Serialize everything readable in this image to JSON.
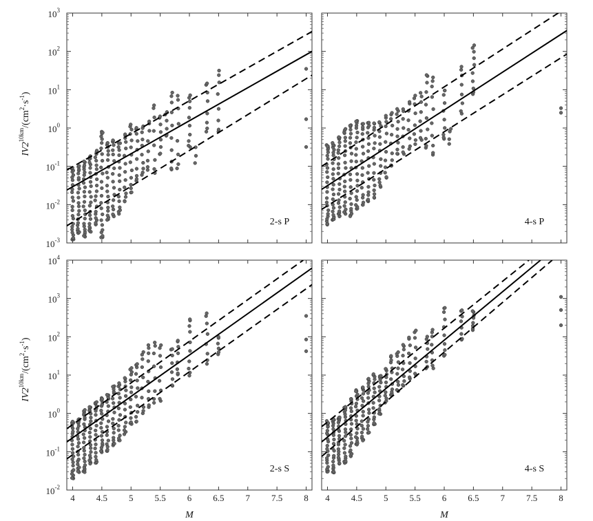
{
  "figure": {
    "ylabel_lead": "IV2",
    "ylabel_sup": "10km",
    "ylabel_units_open": "/(cm",
    "ylabel_units_sup1": "2",
    "ylabel_units_mid": "·s",
    "ylabel_units_sup2": "-1",
    "ylabel_units_close": ")",
    "xlabel": "M"
  },
  "chart_data": [
    {
      "panel": "top-left",
      "type": "scatter",
      "label": "2-s P",
      "xlabel": "",
      "ylabel": "IV2^10km/(cm^2·s^-1)",
      "x_ticks": [
        "4",
        "4.5",
        "5",
        "5.5",
        "6",
        "6.5",
        "7",
        "7.5",
        "8"
      ],
      "xlim": [
        3.9,
        8.1
      ],
      "ylim_log10": [
        -3,
        3
      ],
      "y_scale": "log",
      "y_tick_exponents": [
        "-3",
        "-2",
        "-1",
        "0",
        "1",
        "2",
        "3"
      ],
      "regression": {
        "mean": [
          {
            "x": 3.9,
            "y": 0.024
          },
          {
            "x": 8.1,
            "y": 100
          }
        ],
        "upper": [
          {
            "x": 3.9,
            "y": 0.08
          },
          {
            "x": 8.1,
            "y": 330
          }
        ],
        "lower": [
          {
            "x": 3.9,
            "y": 0.0028
          },
          {
            "x": 8.1,
            "y": 24
          }
        ]
      },
      "outliers": [
        {
          "x": 8.0,
          "y": 35
        },
        {
          "x": 8.0,
          "y": 1.7
        },
        {
          "x": 8.0,
          "y": 0.32
        }
      ],
      "clusters": [
        {
          "x": 4.0,
          "ymin": 0.0012,
          "ymax": 0.09,
          "n": 26
        },
        {
          "x": 4.1,
          "ymin": 0.0018,
          "ymax": 0.1,
          "n": 24
        },
        {
          "x": 4.2,
          "ymin": 0.0015,
          "ymax": 0.13,
          "n": 26
        },
        {
          "x": 4.3,
          "ymin": 0.002,
          "ymax": 0.18,
          "n": 24
        },
        {
          "x": 4.4,
          "ymin": 0.003,
          "ymax": 0.25,
          "n": 22
        },
        {
          "x": 4.5,
          "ymin": 0.0014,
          "ymax": 0.8,
          "n": 24
        },
        {
          "x": 4.6,
          "ymin": 0.004,
          "ymax": 0.4,
          "n": 20
        },
        {
          "x": 4.7,
          "ymin": 0.005,
          "ymax": 0.5,
          "n": 18
        },
        {
          "x": 4.8,
          "ymin": 0.006,
          "ymax": 0.4,
          "n": 16
        },
        {
          "x": 4.9,
          "ymin": 0.012,
          "ymax": 0.7,
          "n": 14
        },
        {
          "x": 5.0,
          "ymin": 0.02,
          "ymax": 1.2,
          "n": 14
        },
        {
          "x": 5.1,
          "ymin": 0.04,
          "ymax": 1.0,
          "n": 10
        },
        {
          "x": 5.2,
          "ymin": 0.06,
          "ymax": 1.1,
          "n": 10
        },
        {
          "x": 5.3,
          "ymin": 0.08,
          "ymax": 1.5,
          "n": 8
        },
        {
          "x": 5.4,
          "ymin": 0.07,
          "ymax": 4.0,
          "n": 8
        },
        {
          "x": 5.5,
          "ymin": 0.2,
          "ymax": 2.0,
          "n": 8
        },
        {
          "x": 5.6,
          "ymin": 0.6,
          "ymax": 2.5,
          "n": 6
        },
        {
          "x": 5.7,
          "ymin": 0.08,
          "ymax": 8.0,
          "n": 10
        },
        {
          "x": 5.8,
          "ymin": 0.09,
          "ymax": 7.0,
          "n": 8
        },
        {
          "x": 6.0,
          "ymin": 0.3,
          "ymax": 7.0,
          "n": 10
        },
        {
          "x": 6.1,
          "ymin": 0.12,
          "ymax": 0.3,
          "n": 3
        },
        {
          "x": 6.3,
          "ymin": 0.8,
          "ymax": 15,
          "n": 8
        },
        {
          "x": 6.5,
          "ymin": 0.8,
          "ymax": 30,
          "n": 8
        }
      ]
    },
    {
      "panel": "top-right",
      "type": "scatter",
      "label": "4-s P",
      "xlabel": "",
      "ylabel": "",
      "x_ticks": [
        "4",
        "4.5",
        "5",
        "5.5",
        "6",
        "6.5",
        "7",
        "7.5",
        "8"
      ],
      "xlim": [
        3.9,
        8.1
      ],
      "ylim_log10": [
        -3,
        3
      ],
      "y_scale": "log",
      "regression": {
        "mean": [
          {
            "x": 3.9,
            "y": 0.025
          },
          {
            "x": 8.1,
            "y": 350
          }
        ],
        "upper": [
          {
            "x": 3.9,
            "y": 0.1
          },
          {
            "x": 8.1,
            "y": 1400
          }
        ],
        "lower": [
          {
            "x": 3.9,
            "y": 0.0075
          },
          {
            "x": 8.1,
            "y": 85
          }
        ]
      },
      "outliers": [
        {
          "x": 8.0,
          "y": 3.3
        },
        {
          "x": 8.0,
          "y": 2.5
        }
      ],
      "clusters": [
        {
          "x": 4.0,
          "ymin": 0.003,
          "ymax": 0.35,
          "n": 26
        },
        {
          "x": 4.1,
          "ymin": 0.004,
          "ymax": 0.4,
          "n": 24
        },
        {
          "x": 4.2,
          "ymin": 0.005,
          "ymax": 0.6,
          "n": 24
        },
        {
          "x": 4.3,
          "ymin": 0.006,
          "ymax": 0.9,
          "n": 22
        },
        {
          "x": 4.4,
          "ymin": 0.005,
          "ymax": 1.2,
          "n": 22
        },
        {
          "x": 4.5,
          "ymin": 0.008,
          "ymax": 1.5,
          "n": 22
        },
        {
          "x": 4.6,
          "ymin": 0.01,
          "ymax": 1.3,
          "n": 18
        },
        {
          "x": 4.7,
          "ymin": 0.012,
          "ymax": 1.4,
          "n": 18
        },
        {
          "x": 4.8,
          "ymin": 0.015,
          "ymax": 1.3,
          "n": 16
        },
        {
          "x": 4.9,
          "ymin": 0.03,
          "ymax": 1.4,
          "n": 14
        },
        {
          "x": 5.0,
          "ymin": 0.05,
          "ymax": 2.0,
          "n": 12
        },
        {
          "x": 5.1,
          "ymin": 0.1,
          "ymax": 2.5,
          "n": 10
        },
        {
          "x": 5.2,
          "ymin": 0.2,
          "ymax": 3.0,
          "n": 10
        },
        {
          "x": 5.3,
          "ymin": 0.2,
          "ymax": 3.0,
          "n": 8
        },
        {
          "x": 5.4,
          "ymin": 0.3,
          "ymax": 5.0,
          "n": 8
        },
        {
          "x": 5.5,
          "ymin": 0.4,
          "ymax": 7.0,
          "n": 8
        },
        {
          "x": 5.6,
          "ymin": 0.5,
          "ymax": 8.0,
          "n": 8
        },
        {
          "x": 5.7,
          "ymin": 0.3,
          "ymax": 25,
          "n": 10
        },
        {
          "x": 5.8,
          "ymin": 0.2,
          "ymax": 20,
          "n": 10
        },
        {
          "x": 6.0,
          "ymin": 0.5,
          "ymax": 10,
          "n": 10
        },
        {
          "x": 6.1,
          "ymin": 0.4,
          "ymax": 1.0,
          "n": 4
        },
        {
          "x": 6.3,
          "ymin": 2.5,
          "ymax": 40,
          "n": 8
        },
        {
          "x": 6.5,
          "ymin": 8,
          "ymax": 140,
          "n": 10
        }
      ]
    },
    {
      "panel": "bottom-left",
      "type": "scatter",
      "label": "2-s S",
      "xlabel": "M",
      "ylabel": "IV2^10km/(cm^2·s^-1)",
      "x_ticks": [
        "4",
        "4.5",
        "5",
        "5.5",
        "6",
        "6.5",
        "7",
        "7.5",
        "8"
      ],
      "xlim": [
        3.9,
        8.1
      ],
      "ylim_log10": [
        -2,
        4
      ],
      "y_scale": "log",
      "y_tick_exponents": [
        "-2",
        "-1",
        "0",
        "1",
        "2",
        "3",
        "4"
      ],
      "regression": {
        "mean": [
          {
            "x": 3.9,
            "y": 0.18
          },
          {
            "x": 8.1,
            "y": 6200
          }
        ],
        "upper": [
          {
            "x": 3.9,
            "y": 0.4
          },
          {
            "x": 7.95,
            "y": 10000
          }
        ],
        "lower": [
          {
            "x": 3.9,
            "y": 0.065
          },
          {
            "x": 8.1,
            "y": 2300
          }
        ]
      },
      "outliers": [
        {
          "x": 8.0,
          "y": 350
        },
        {
          "x": 8.0,
          "y": 85
        },
        {
          "x": 8.0,
          "y": 42
        }
      ],
      "clusters": [
        {
          "x": 4.0,
          "ymin": 0.02,
          "ymax": 0.6,
          "n": 24
        },
        {
          "x": 4.1,
          "ymin": 0.03,
          "ymax": 0.7,
          "n": 22
        },
        {
          "x": 4.2,
          "ymin": 0.03,
          "ymax": 1.2,
          "n": 24
        },
        {
          "x": 4.3,
          "ymin": 0.05,
          "ymax": 1.5,
          "n": 22
        },
        {
          "x": 4.4,
          "ymin": 0.05,
          "ymax": 2.0,
          "n": 20
        },
        {
          "x": 4.5,
          "ymin": 0.1,
          "ymax": 2.5,
          "n": 20
        },
        {
          "x": 4.6,
          "ymin": 0.1,
          "ymax": 3.0,
          "n": 18
        },
        {
          "x": 4.7,
          "ymin": 0.15,
          "ymax": 5.0,
          "n": 18
        },
        {
          "x": 4.8,
          "ymin": 0.2,
          "ymax": 6.0,
          "n": 16
        },
        {
          "x": 4.9,
          "ymin": 0.3,
          "ymax": 8.0,
          "n": 14
        },
        {
          "x": 5.0,
          "ymin": 0.5,
          "ymax": 15,
          "n": 14
        },
        {
          "x": 5.1,
          "ymin": 0.6,
          "ymax": 20,
          "n": 12
        },
        {
          "x": 5.2,
          "ymin": 1.0,
          "ymax": 40,
          "n": 10
        },
        {
          "x": 5.3,
          "ymin": 1.5,
          "ymax": 60,
          "n": 10
        },
        {
          "x": 5.4,
          "ymin": 2.0,
          "ymax": 70,
          "n": 8
        },
        {
          "x": 5.5,
          "ymin": 2.0,
          "ymax": 60,
          "n": 8
        },
        {
          "x": 5.7,
          "ymin": 5.0,
          "ymax": 50,
          "n": 8
        },
        {
          "x": 5.8,
          "ymin": 10,
          "ymax": 80,
          "n": 8
        },
        {
          "x": 6.0,
          "ymin": 10,
          "ymax": 300,
          "n": 10
        },
        {
          "x": 6.3,
          "ymin": 20,
          "ymax": 400,
          "n": 8
        },
        {
          "x": 6.5,
          "ymin": 35,
          "ymax": 100,
          "n": 6
        }
      ]
    },
    {
      "panel": "bottom-right",
      "type": "scatter",
      "label": "4-s S",
      "xlabel": "M",
      "ylabel": "",
      "x_ticks": [
        "4",
        "4.5",
        "5",
        "5.5",
        "6",
        "6.5",
        "7",
        "7.5",
        "8"
      ],
      "xlim": [
        3.9,
        8.1
      ],
      "ylim_log10": [
        -2,
        4
      ],
      "y_scale": "log",
      "regression": {
        "mean": [
          {
            "x": 3.9,
            "y": 0.18
          },
          {
            "x": 7.65,
            "y": 10000
          }
        ],
        "upper": [
          {
            "x": 3.9,
            "y": 0.45
          },
          {
            "x": 7.45,
            "y": 10000
          }
        ],
        "lower": [
          {
            "x": 3.9,
            "y": 0.075
          },
          {
            "x": 7.85,
            "y": 10000
          }
        ]
      },
      "outliers": [
        {
          "x": 8.0,
          "y": 1100
        },
        {
          "x": 8.0,
          "y": 500
        },
        {
          "x": 8.0,
          "y": 200
        }
      ],
      "clusters": [
        {
          "x": 4.0,
          "ymin": 0.03,
          "ymax": 0.6,
          "n": 24
        },
        {
          "x": 4.1,
          "ymin": 0.03,
          "ymax": 0.7,
          "n": 22
        },
        {
          "x": 4.2,
          "ymin": 0.05,
          "ymax": 0.8,
          "n": 22
        },
        {
          "x": 4.3,
          "ymin": 0.05,
          "ymax": 1.5,
          "n": 22
        },
        {
          "x": 4.4,
          "ymin": 0.08,
          "ymax": 2.5,
          "n": 20
        },
        {
          "x": 4.5,
          "ymin": 0.15,
          "ymax": 4.0,
          "n": 20
        },
        {
          "x": 4.6,
          "ymin": 0.2,
          "ymax": 5.0,
          "n": 18
        },
        {
          "x": 4.7,
          "ymin": 0.3,
          "ymax": 8.0,
          "n": 18
        },
        {
          "x": 4.8,
          "ymin": 0.5,
          "ymax": 10,
          "n": 16
        },
        {
          "x": 4.9,
          "ymin": 1.0,
          "ymax": 10,
          "n": 14
        },
        {
          "x": 5.0,
          "ymin": 2.0,
          "ymax": 15,
          "n": 12
        },
        {
          "x": 5.1,
          "ymin": 3.0,
          "ymax": 30,
          "n": 12
        },
        {
          "x": 5.2,
          "ymin": 4.0,
          "ymax": 40,
          "n": 10
        },
        {
          "x": 5.3,
          "ymin": 5.0,
          "ymax": 60,
          "n": 10
        },
        {
          "x": 5.4,
          "ymin": 8.0,
          "ymax": 100,
          "n": 8
        },
        {
          "x": 5.5,
          "ymin": 10,
          "ymax": 150,
          "n": 8
        },
        {
          "x": 5.7,
          "ymin": 15,
          "ymax": 100,
          "n": 8
        },
        {
          "x": 5.8,
          "ymin": 15,
          "ymax": 150,
          "n": 8
        },
        {
          "x": 6.0,
          "ymin": 30,
          "ymax": 600,
          "n": 10
        },
        {
          "x": 6.3,
          "ymin": 80,
          "ymax": 500,
          "n": 8
        },
        {
          "x": 6.5,
          "ymin": 150,
          "ymax": 450,
          "n": 8
        }
      ]
    }
  ]
}
